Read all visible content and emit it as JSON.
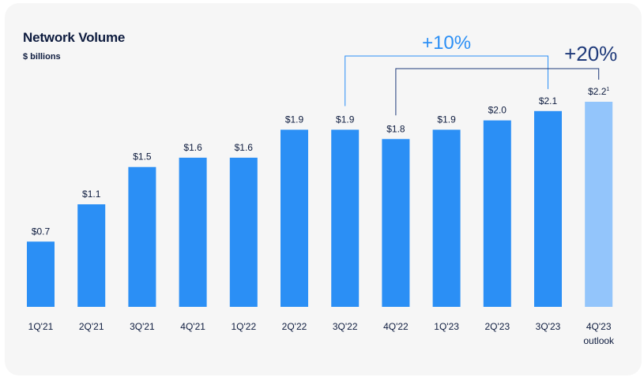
{
  "chart_data": {
    "type": "bar",
    "title": "Network Volume",
    "subtitle": "$ billions",
    "categories": [
      "1Q'21",
      "2Q'21",
      "3Q'21",
      "4Q'21",
      "1Q'22",
      "2Q'22",
      "3Q'22",
      "4Q'22",
      "1Q'23",
      "2Q'23",
      "3Q'23",
      "4Q'23"
    ],
    "category_sublabels": [
      "",
      "",
      "",
      "",
      "",
      "",
      "",
      "",
      "",
      "",
      "",
      "outlook"
    ],
    "values": [
      0.7,
      1.1,
      1.5,
      1.6,
      1.6,
      1.9,
      1.9,
      1.8,
      1.9,
      2.0,
      2.1,
      2.2
    ],
    "value_labels": [
      "$0.7",
      "$1.1",
      "$1.5",
      "$1.6",
      "$1.6",
      "$1.9",
      "$1.9",
      "$1.8",
      "$1.9",
      "$2.0",
      "$2.1",
      "$2.2"
    ],
    "footnote_marks": [
      "",
      "",
      "",
      "",
      "",
      "",
      "",
      "",
      "",
      "",
      "",
      "1"
    ],
    "ylim": [
      0,
      2.2
    ],
    "grid": false,
    "colors": {
      "bar": "#2b8ff5",
      "outlook_bar": "#93c5fb",
      "text": "#0d1b3e",
      "bracket_light": "#2b8ff5",
      "bracket_dark": "#1f3a7a"
    },
    "annotations": [
      {
        "label": "+10%",
        "from_index": 6,
        "to_index": 10,
        "style": "light"
      },
      {
        "label": "+20%",
        "from_index": 7,
        "to_index": 11,
        "style": "dark"
      }
    ]
  }
}
